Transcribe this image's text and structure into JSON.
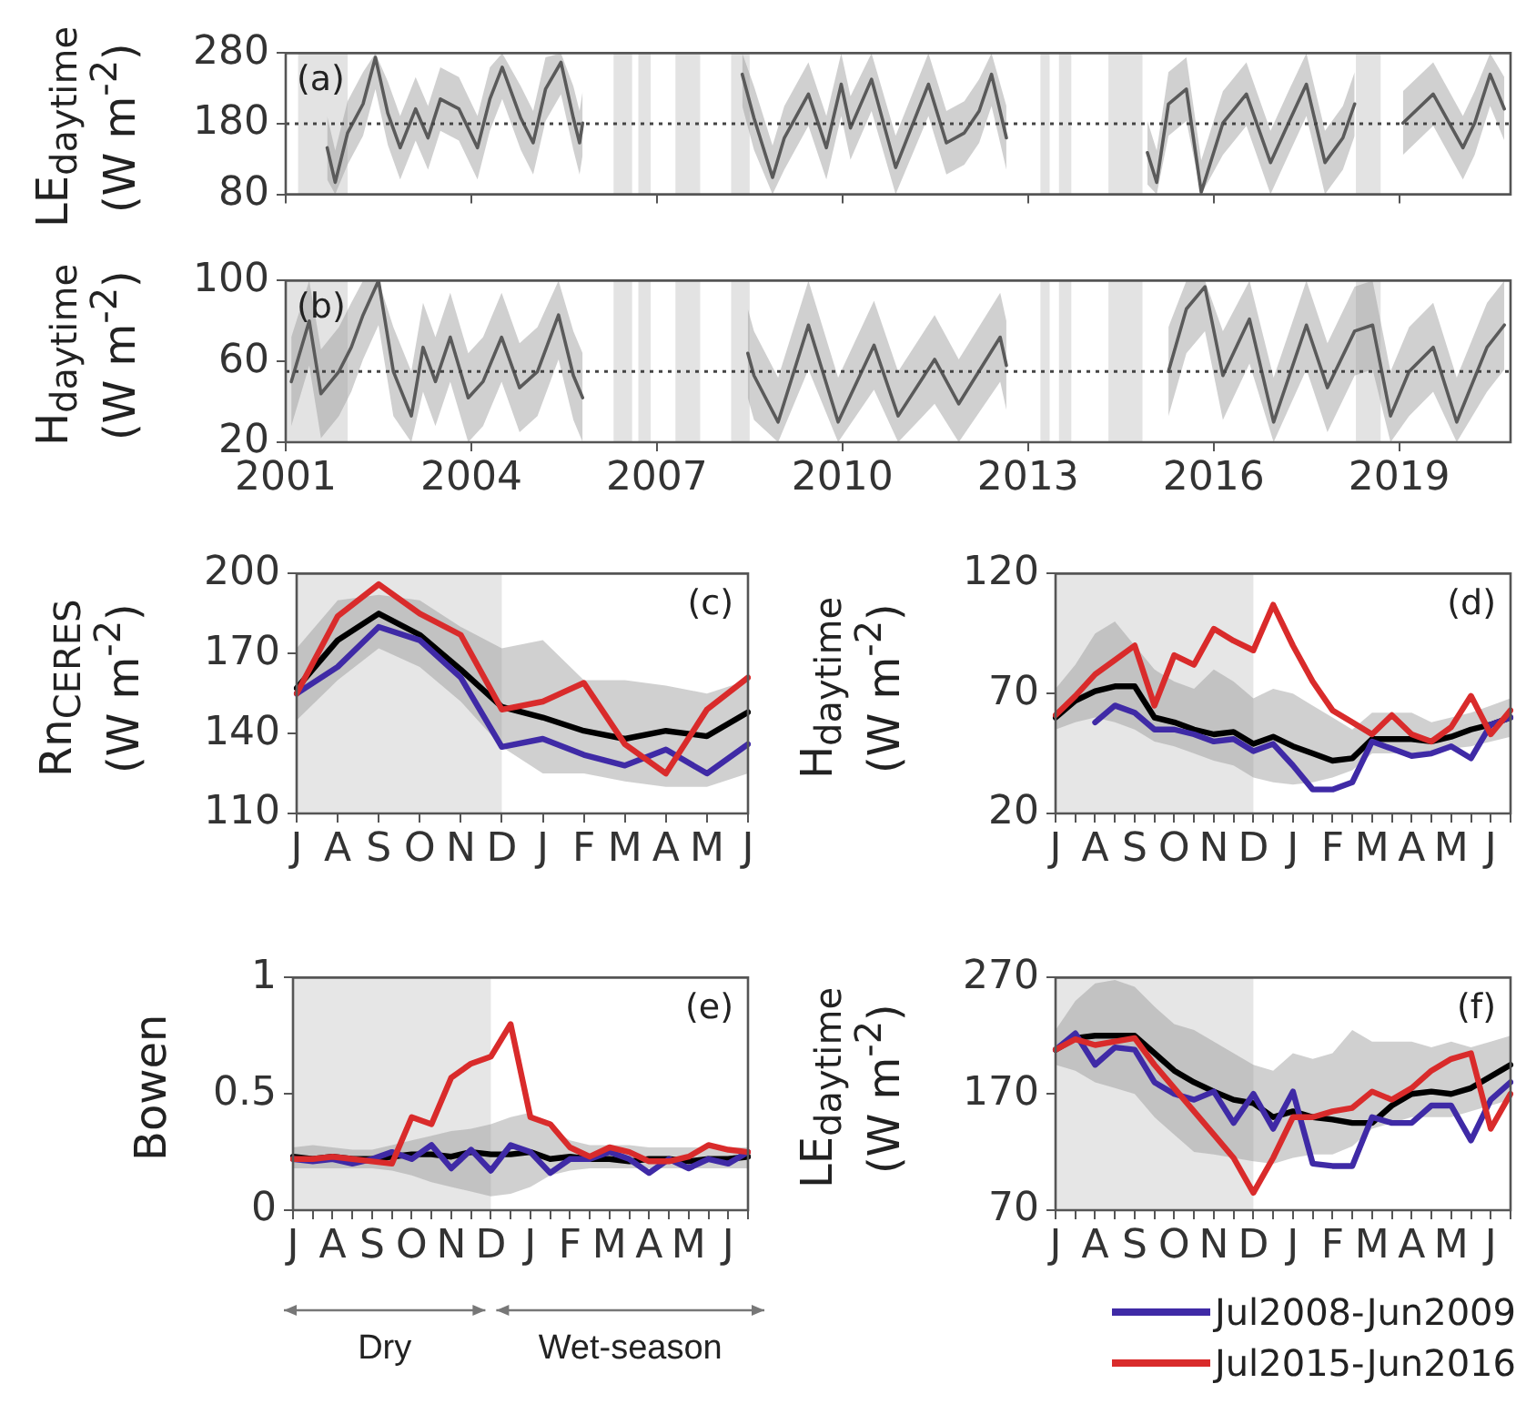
{
  "chart_data": [
    {
      "type": "line",
      "ylabel": "LE$_{daytime}$ (W m$^{-2}$)",
      "annotations": [
        "(a)"
      ],
      "xlim": [
        2001,
        2020.8
      ],
      "xticks": [
        2001,
        2004,
        2007,
        2010,
        2013,
        2016,
        2019
      ],
      "ylim": [
        80,
        280
      ],
      "yticks": [
        80,
        180,
        280
      ],
      "grid": false,
      "tick_labels": "y",
      "ref_lines": [
        {
          "axis": "y",
          "value": 180,
          "line_style": "dotted",
          "color": "#444444"
        }
      ],
      "bands": [
        {
          "axis": "x",
          "from": 2001.2,
          "to": 2002.0,
          "color": "#e3e3e3"
        },
        {
          "axis": "x",
          "from": 2006.3,
          "to": 2006.6,
          "color": "#e3e3e3"
        },
        {
          "axis": "x",
          "from": 2006.7,
          "to": 2006.9,
          "color": "#e3e3e3"
        },
        {
          "axis": "x",
          "from": 2007.3,
          "to": 2007.7,
          "color": "#e3e3e3"
        },
        {
          "axis": "x",
          "from": 2008.2,
          "to": 2008.5,
          "color": "#e3e3e3"
        },
        {
          "axis": "x",
          "from": 2013.2,
          "to": 2013.35,
          "color": "#e3e3e3"
        },
        {
          "axis": "x",
          "from": 2013.5,
          "to": 2013.7,
          "color": "#e3e3e3"
        },
        {
          "axis": "x",
          "from": 2014.3,
          "to": 2014.85,
          "color": "#e3e3e3"
        },
        {
          "axis": "x",
          "from": 2018.3,
          "to": 2018.7,
          "color": "#e3e3e3"
        }
      ],
      "series": [
        {
          "color": "#5a5a5a",
          "x": [
            2001.67,
            2001.8,
            2002.0,
            2002.25,
            2002.45,
            2002.65,
            2002.85,
            2003.1,
            2003.3,
            2003.5,
            2003.8,
            2004.1,
            2004.3,
            2004.5,
            2004.8,
            2005.0,
            2005.2,
            2005.45,
            2005.65,
            2005.75,
            2005.8,
            2007,
            2008.38,
            2008.57,
            2008.87,
            2009.06,
            2009.45,
            2009.74,
            2009.98,
            2010.13,
            2010.47,
            2010.86,
            2011.39,
            2011.68,
            2011.97,
            2012.21,
            2012.41,
            2012.65,
            2013.5,
            2014.93,
            2015.08,
            2015.27,
            2015.56,
            2015.8,
            2016.15,
            2016.53,
            2016.92,
            2017.21,
            2017.5,
            2017.8,
            2018.09,
            2018.28,
            2018.6,
            2019.06,
            2019.55,
            2020.03,
            2020.22,
            2020.47,
            2020.7
          ],
          "values": [
            146,
            97,
            167,
            208,
            274,
            195,
            146,
            201,
            160,
            215,
            201,
            146,
            215,
            260,
            188,
            153,
            229,
            267,
            188,
            153,
            181,
            null,
            250,
            188,
            104,
            160,
            222,
            146,
            236,
            174,
            243,
            118,
            236,
            153,
            167,
            198,
            250,
            160,
            null,
            139,
            97,
            208,
            229,
            83,
            181,
            222,
            125,
            181,
            236,
            125,
            160,
            208,
            null,
            181,
            222,
            146,
            181,
            250,
            201
          ],
          "upper": [
            191,
            142,
            212,
            253,
            280,
            240,
            191,
            246,
            205,
            260,
            246,
            191,
            260,
            280,
            233,
            198,
            274,
            280,
            233,
            198,
            226,
            null,
            280,
            233,
            149,
            205,
            267,
            191,
            280,
            219,
            280,
            163,
            280,
            198,
            212,
            243,
            280,
            205,
            null,
            184,
            142,
            253,
            274,
            128,
            226,
            267,
            170,
            226,
            280,
            170,
            205,
            253,
            null,
            226,
            267,
            191,
            226,
            280,
            246
          ],
          "lower": [
            101,
            80,
            122,
            163,
            229,
            150,
            101,
            156,
            115,
            170,
            156,
            101,
            170,
            215,
            143,
            108,
            184,
            222,
            143,
            108,
            136,
            null,
            205,
            143,
            80,
            115,
            177,
            101,
            191,
            129,
            198,
            80,
            191,
            108,
            122,
            153,
            205,
            115,
            null,
            94,
            80,
            163,
            184,
            80,
            136,
            177,
            80,
            136,
            191,
            80,
            115,
            163,
            null,
            136,
            177,
            101,
            136,
            205,
            156
          ]
        }
      ]
    },
    {
      "type": "line",
      "ylabel": "H$_{daytime}$ (W m$^{-2}$)",
      "annotations": [
        "(b)"
      ],
      "xlim": [
        2001,
        2020.8
      ],
      "xticks": [
        2001,
        2004,
        2007,
        2010,
        2013,
        2016,
        2019
      ],
      "ylim": [
        20,
        100
      ],
      "yticks": [
        20,
        60,
        100
      ],
      "grid": false,
      "ref_lines": [
        {
          "axis": "y",
          "value": 55,
          "line_style": "dotted",
          "color": "#444444"
        }
      ],
      "bands": [
        {
          "axis": "x",
          "from": 2001.0,
          "to": 2002.0,
          "color": "#e3e3e3"
        },
        {
          "axis": "x",
          "from": 2006.3,
          "to": 2006.6,
          "color": "#e3e3e3"
        },
        {
          "axis": "x",
          "from": 2006.7,
          "to": 2006.9,
          "color": "#e3e3e3"
        },
        {
          "axis": "x",
          "from": 2007.3,
          "to": 2007.7,
          "color": "#e3e3e3"
        },
        {
          "axis": "x",
          "from": 2008.2,
          "to": 2008.5,
          "color": "#e3e3e3"
        },
        {
          "axis": "x",
          "from": 2013.2,
          "to": 2013.35,
          "color": "#e3e3e3"
        },
        {
          "axis": "x",
          "from": 2013.5,
          "to": 2013.7,
          "color": "#e3e3e3"
        },
        {
          "axis": "x",
          "from": 2014.3,
          "to": 2014.85,
          "color": "#e3e3e3"
        },
        {
          "axis": "x",
          "from": 2018.3,
          "to": 2018.7,
          "color": "#e3e3e3"
        }
      ],
      "series": [
        {
          "color": "#5a5a5a",
          "x": [
            2001.09,
            2001.38,
            2001.57,
            2001.86,
            2002.06,
            2002.25,
            2002.5,
            2002.74,
            2003.03,
            2003.22,
            2003.42,
            2003.66,
            2003.95,
            2004.19,
            2004.49,
            2004.78,
            2005.07,
            2005.41,
            2005.65,
            2005.8,
            2007,
            2008.47,
            2008.57,
            2008.96,
            2009.45,
            2009.93,
            2010.51,
            2010.9,
            2011.49,
            2011.88,
            2012.55,
            2012.65,
            2013.5,
            2015.27,
            2015.56,
            2015.86,
            2016.15,
            2016.58,
            2016.97,
            2017.5,
            2017.84,
            2018.28,
            2018.57,
            2018.86,
            2019.16,
            2019.55,
            2019.93,
            2020.42,
            2020.7
          ],
          "values": [
            50,
            80,
            44,
            55,
            67,
            83,
            100,
            55,
            33,
            67,
            50,
            72,
            42,
            50,
            72,
            47,
            55,
            83,
            53,
            42,
            null,
            64,
            53,
            30,
            78,
            30,
            68,
            33,
            61,
            39,
            72,
            58,
            null,
            55,
            86,
            97,
            53,
            81,
            30,
            78,
            47,
            75,
            78,
            33,
            55,
            67,
            30,
            67,
            78
          ],
          "upper": [
            72,
            100,
            66,
            77,
            89,
            100,
            100,
            77,
            55,
            89,
            72,
            94,
            64,
            72,
            94,
            69,
            77,
            100,
            75,
            64,
            null,
            86,
            75,
            52,
            100,
            52,
            90,
            55,
            83,
            61,
            94,
            80,
            null,
            77,
            100,
            100,
            75,
            100,
            52,
            100,
            69,
            97,
            100,
            55,
            77,
            89,
            52,
            89,
            100
          ],
          "lower": [
            28,
            58,
            22,
            33,
            45,
            61,
            78,
            33,
            20,
            45,
            28,
            50,
            20,
            28,
            50,
            25,
            33,
            61,
            31,
            20,
            null,
            42,
            31,
            20,
            56,
            20,
            46,
            20,
            39,
            20,
            50,
            36,
            null,
            33,
            64,
            75,
            31,
            59,
            20,
            56,
            25,
            53,
            56,
            20,
            33,
            45,
            20,
            45,
            56
          ]
        }
      ]
    },
    {
      "type": "line",
      "ylabel": "Rn$_{CERES}$ (W m$^{-2}$)",
      "annotations": [
        "(c)"
      ],
      "categories": [
        "J",
        "A",
        "S",
        "O",
        "N",
        "D",
        "J",
        "F",
        "M",
        "A",
        "M",
        "J"
      ],
      "ylim": [
        110,
        200
      ],
      "yticks": [
        110,
        140,
        170,
        200
      ],
      "grid": false,
      "bands": [
        {
          "axis": "x",
          "from": "J",
          "to": "D",
          "color": "#e6e6e6"
        }
      ],
      "series": [
        {
          "color": "#000000",
          "values": [
            157,
            175,
            185,
            177,
            164,
            150,
            146,
            141,
            138,
            141,
            139,
            148
          ],
          "lower": [
            145,
            160,
            172,
            165,
            152,
            135,
            125,
            125,
            122,
            120,
            120,
            125
          ],
          "upper": [
            172,
            190,
            192,
            190,
            180,
            172,
            175,
            160,
            160,
            158,
            155,
            160
          ]
        },
        {
          "color": "#3f2aa6",
          "values": [
            155,
            165,
            180,
            175,
            161,
            135,
            138,
            132,
            128,
            134,
            125,
            136
          ]
        },
        {
          "color": "#d92b2b",
          "values": [
            155,
            184,
            196,
            185,
            177,
            149,
            152,
            159,
            136,
            125,
            149,
            161
          ]
        }
      ]
    },
    {
      "type": "line",
      "ylabel": "H$_{daytime}$ (W m$^{-2}$)",
      "annotations": [
        "(d)"
      ],
      "categories": [
        "J",
        null,
        "A",
        null,
        "S",
        null,
        "O",
        null,
        "N",
        null,
        "D",
        null,
        "J",
        null,
        "F",
        null,
        "M",
        null,
        "A",
        null,
        "M",
        null,
        "J",
        null
      ],
      "ylim": [
        20,
        120
      ],
      "yticks": [
        20,
        70,
        120
      ],
      "grid": false,
      "bands": [
        {
          "axis": "x",
          "from": "J",
          "to": "D",
          "color": "#e6e6e6"
        }
      ],
      "series": [
        {
          "color": "#000000",
          "values": [
            60,
            67,
            71,
            73,
            73,
            60,
            58,
            55,
            53,
            54,
            49,
            52,
            48,
            45,
            42,
            43,
            51,
            51,
            51,
            50,
            52,
            55,
            57,
            60
          ],
          "lower": [
            55,
            58,
            60,
            58,
            55,
            50,
            48,
            45,
            42,
            40,
            35,
            33,
            32,
            33,
            35,
            38,
            45,
            45,
            45,
            46,
            47,
            48,
            50,
            52
          ],
          "upper": [
            72,
            82,
            95,
            100,
            90,
            80,
            75,
            72,
            80,
            75,
            68,
            72,
            70,
            65,
            60,
            55,
            62,
            62,
            62,
            58,
            60,
            62,
            65,
            68
          ]
        },
        {
          "color": "#3f2aa6",
          "values": [
            null,
            null,
            58,
            65,
            62,
            55,
            55,
            53,
            50,
            51,
            46,
            49,
            40,
            30,
            30,
            33,
            50,
            47,
            44,
            45,
            48,
            43,
            57,
            60
          ]
        },
        {
          "color": "#d92b2b",
          "values": [
            61,
            69,
            78,
            84,
            90,
            65,
            86,
            82,
            97,
            92,
            88,
            107,
            90,
            75,
            63,
            58,
            53,
            61,
            53,
            50,
            56,
            69,
            53,
            63
          ]
        }
      ]
    },
    {
      "type": "line",
      "ylabel": "Bowen",
      "annotations": [
        "(e)",
        "Dry",
        "Wet-season"
      ],
      "categories": [
        "J",
        null,
        "A",
        null,
        "S",
        null,
        "O",
        null,
        "N",
        null,
        "D",
        null,
        "J",
        null,
        "F",
        null,
        "M",
        null,
        "A",
        null,
        "M",
        null,
        "J",
        null
      ],
      "ylim": [
        0,
        1
      ],
      "yticks": [
        0,
        0.5,
        1
      ],
      "grid": false,
      "bands": [
        {
          "axis": "x",
          "from": "J",
          "to": "D",
          "color": "#e6e6e6"
        }
      ],
      "series": [
        {
          "color": "#000000",
          "values": [
            0.23,
            0.22,
            0.23,
            0.22,
            0.22,
            0.23,
            0.24,
            0.24,
            0.23,
            0.25,
            0.24,
            0.24,
            0.25,
            0.22,
            0.23,
            0.22,
            0.22,
            0.21,
            0.22,
            0.22,
            0.21,
            0.22,
            0.22,
            0.23
          ],
          "lower": [
            0.18,
            0.18,
            0.18,
            0.18,
            0.18,
            0.17,
            0.15,
            0.12,
            0.1,
            0.08,
            0.06,
            0.07,
            0.1,
            0.15,
            0.17,
            0.18,
            0.18,
            0.18,
            0.18,
            0.18,
            0.18,
            0.18,
            0.18,
            0.18
          ],
          "upper": [
            0.27,
            0.28,
            0.27,
            0.26,
            0.26,
            0.28,
            0.3,
            0.32,
            0.34,
            0.35,
            0.37,
            0.4,
            0.42,
            0.35,
            0.3,
            0.28,
            0.28,
            0.28,
            0.27,
            0.27,
            0.27,
            0.27,
            0.27,
            0.27
          ]
        },
        {
          "color": "#3f2aa6",
          "values": [
            0.22,
            0.21,
            0.22,
            0.2,
            0.22,
            0.25,
            0.22,
            0.28,
            0.18,
            0.26,
            0.17,
            0.28,
            0.25,
            0.16,
            0.22,
            0.22,
            0.25,
            0.22,
            0.16,
            0.22,
            0.18,
            0.22,
            0.2,
            0.25
          ]
        },
        {
          "color": "#d92b2b",
          "values": [
            0.22,
            0.22,
            0.23,
            0.22,
            0.21,
            0.2,
            0.4,
            0.37,
            0.57,
            0.63,
            0.66,
            0.8,
            0.4,
            0.37,
            0.27,
            0.23,
            0.27,
            0.25,
            0.21,
            0.21,
            0.23,
            0.28,
            0.26,
            0.25
          ]
        }
      ]
    },
    {
      "type": "line",
      "ylabel": "LE$_{daytime}$ (W m$^{-2}$)",
      "annotations": [
        "(f)"
      ],
      "categories": [
        "J",
        null,
        "A",
        null,
        "S",
        null,
        "O",
        null,
        "N",
        null,
        "D",
        null,
        "J",
        null,
        "F",
        null,
        "M",
        null,
        "A",
        null,
        "M",
        null,
        "J",
        null
      ],
      "ylim": [
        70,
        270
      ],
      "yticks": [
        70,
        170,
        270
      ],
      "grid": false,
      "legend": "bottom right",
      "bands": [
        {
          "axis": "x",
          "from": "J",
          "to": "D",
          "color": "#e6e6e6"
        }
      ],
      "series": [
        {
          "color": "#000000",
          "values": [
            208,
            218,
            220,
            220,
            220,
            205,
            190,
            180,
            172,
            165,
            162,
            150,
            155,
            150,
            148,
            145,
            145,
            160,
            170,
            172,
            170,
            175,
            185,
            195
          ],
          "lower": [
            195,
            190,
            180,
            175,
            170,
            150,
            135,
            120,
            118,
            115,
            112,
            110,
            115,
            118,
            118,
            125,
            140,
            145,
            150,
            150,
            150,
            155,
            160,
            165
          ],
          "upper": [
            225,
            250,
            265,
            268,
            262,
            245,
            230,
            225,
            215,
            205,
            195,
            190,
            205,
            200,
            205,
            225,
            215,
            215,
            215,
            210,
            215,
            210,
            215,
            220
          ]
        },
        {
          "name": "Jul2008-Jun2009",
          "color": "#3f2aa6",
          "values": [
            208,
            222,
            195,
            210,
            208,
            180,
            170,
            165,
            172,
            145,
            170,
            140,
            172,
            110,
            108,
            108,
            150,
            145,
            145,
            160,
            160,
            130,
            165,
            180
          ]
        },
        {
          "name": "Jul2015-Jun2016",
          "color": "#d92b2b",
          "values": [
            208,
            217,
            212,
            215,
            218,
            195,
            175,
            155,
            135,
            115,
            85,
            115,
            150,
            150,
            155,
            158,
            172,
            165,
            175,
            190,
            200,
            205,
            140,
            170
          ]
        }
      ]
    }
  ]
}
